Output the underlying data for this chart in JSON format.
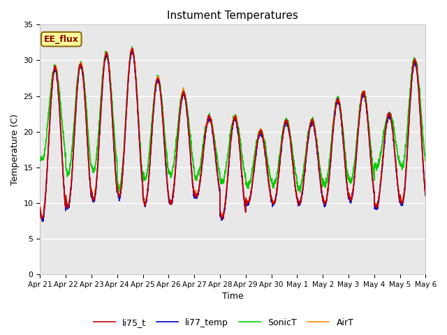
{
  "title": "Instument Temperatures",
  "xlabel": "Time",
  "ylabel": "Temperature (C)",
  "ylim": [
    0,
    35
  ],
  "annotation_text": "EE_flux",
  "annotation_color": "#8B0000",
  "annotation_bg": "#FFFF99",
  "annotation_border": "#8B6914",
  "bg_color": "#E8E8E8",
  "fig_bg": "#FFFFFF",
  "grid_color": "#FFFFFF",
  "line_colors": {
    "li75_t": "#CC0000",
    "li77_temp": "#0000CC",
    "SonicT": "#00CC00",
    "AirT": "#FF8800"
  },
  "line_width": 1.2,
  "x_ticks": [
    "Apr 21",
    "Apr 22",
    "Apr 23",
    "Apr 24",
    "Apr 25",
    "Apr 26",
    "Apr 27",
    "Apr 28",
    "Apr 29",
    "Apr 30",
    "May 1",
    "May 2",
    "May 3",
    "May 4",
    "May 5",
    "May 6"
  ],
  "num_days": 15,
  "points_per_day": 144,
  "peaks": [
    29.0,
    29.5,
    31.0,
    31.5,
    27.5,
    25.5,
    22.0,
    22.0,
    20.0,
    21.5,
    21.5,
    24.5,
    25.5,
    22.5,
    30.0
  ],
  "mins": [
    7.8,
    9.5,
    10.5,
    11.0,
    10.0,
    10.0,
    11.0,
    8.0,
    10.0,
    10.0,
    10.0,
    10.0,
    10.5,
    9.5,
    10.0
  ],
  "sonic_mins": [
    16.0,
    14.0,
    14.5,
    12.0,
    13.5,
    14.0,
    13.5,
    13.0,
    12.5,
    12.5,
    12.0,
    12.5,
    13.0,
    15.0,
    15.0
  ],
  "peak_time": 0.58,
  "min_time": 0.08
}
